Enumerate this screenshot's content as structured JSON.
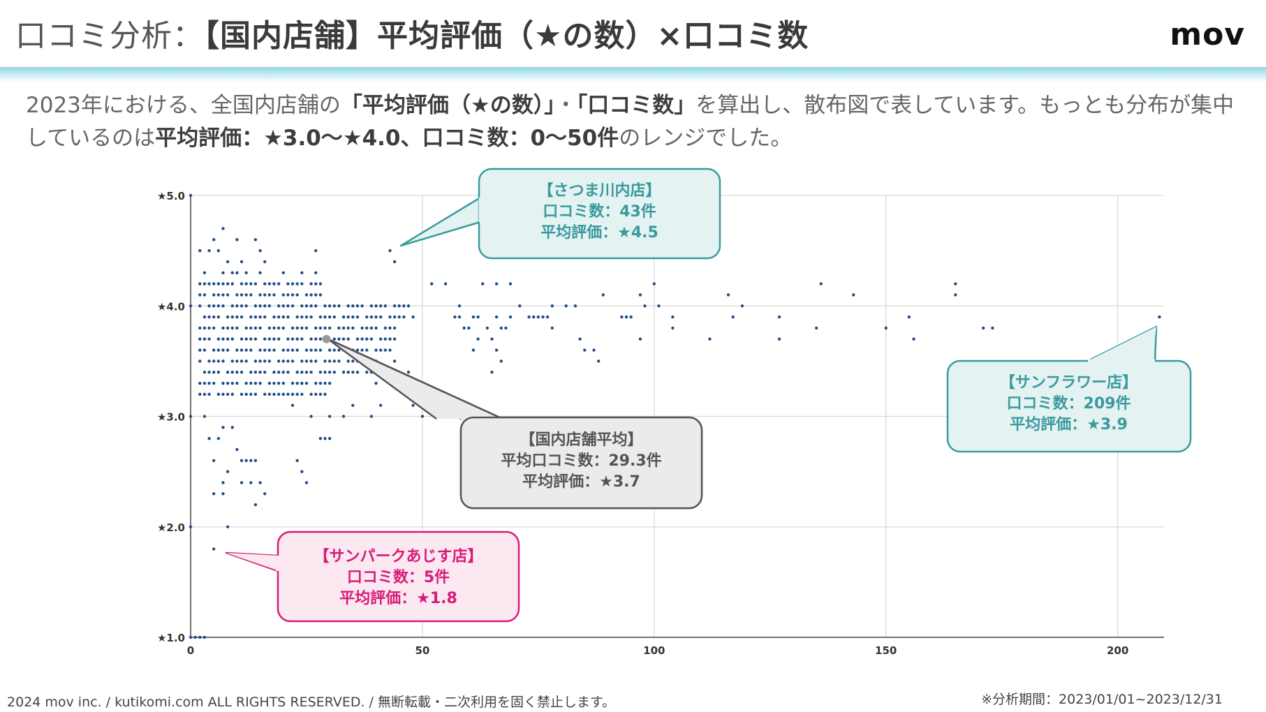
{
  "header": {
    "title_prefix": "口コミ分析：",
    "title_main": "【国内店舗】平均評価（★の数）×口コミ数",
    "logo": "mov"
  },
  "description": {
    "t1": "2023年における、全国内店舗の",
    "b1": "「平均評価（★の数）」",
    "t2": "・",
    "b2": "「口コミ数」",
    "t3": "を算出し、散布図で表しています。もっとも分布が集中しているのは",
    "b3": "平均評価：★3.0〜★4.0、口コミ数：0〜50件",
    "t4": "のレンジでした。"
  },
  "callouts": {
    "satsuma": {
      "name": "【さつま川内店】",
      "reviews": "口コミ数：43件",
      "rating": "平均評価：★4.5"
    },
    "average": {
      "name": "【国内店舗平均】",
      "reviews": "平均口コミ数：29.3件",
      "rating": "平均評価：★3.7"
    },
    "sunflower": {
      "name": "【サンフラワー店】",
      "reviews": "口コミ数：209件",
      "rating": "平均評価：★3.9"
    },
    "sunpark": {
      "name": "【サンパークあじす店】",
      "reviews": "口コミ数：5件",
      "rating": "平均評価：★1.8"
    }
  },
  "footer": {
    "left": "2024 mov inc. / kutikomi.com ALL RIGHTS RESERVED. / 無断転載・二次利用を固く禁止します。",
    "right": "※分析期間：2023/01/01~2023/12/31"
  },
  "colors": {
    "dot": "#1f4e89",
    "teal": "#3a9a9e",
    "teal_fill": "#e4f2f2",
    "gray_fill": "#ebebeb",
    "pink": "#d81b78",
    "pink_fill": "#fce8f1"
  },
  "chart_data": {
    "type": "scatter",
    "xlabel": "",
    "ylabel": "",
    "xlim": [
      0,
      210
    ],
    "ylim": [
      1.0,
      5.0
    ],
    "x_ticks": [
      0,
      50,
      100,
      150,
      200
    ],
    "x_tick_labels": [
      "0",
      "50",
      "100",
      "150",
      "200"
    ],
    "y_ticks": [
      1.0,
      2.0,
      3.0,
      4.0,
      5.0
    ],
    "y_tick_labels": [
      "★1.0",
      "★2.0",
      "★3.0",
      "★4.0",
      "★5.0"
    ],
    "grid": true,
    "highlight": {
      "name": "国内店舗平均",
      "x": 29.3,
      "y": 3.7
    },
    "points": [
      [
        0,
        5.0
      ],
      [
        0,
        4.0
      ],
      [
        0,
        3.0
      ],
      [
        0,
        2.0
      ],
      [
        0,
        1.0
      ],
      [
        1,
        1.0
      ],
      [
        2,
        1.0
      ],
      [
        3,
        1.0
      ],
      [
        2,
        4.5
      ],
      [
        3,
        4.3
      ],
      [
        4,
        4.5
      ],
      [
        5,
        4.6
      ],
      [
        5,
        4.2
      ],
      [
        6,
        4.5
      ],
      [
        7,
        4.7
      ],
      [
        8,
        4.4
      ],
      [
        10,
        4.6
      ],
      [
        11,
        4.4
      ],
      [
        14,
        4.6
      ],
      [
        15,
        4.5
      ],
      [
        16,
        4.4
      ],
      [
        27,
        4.5
      ],
      [
        44,
        4.4
      ],
      [
        43,
        4.5
      ],
      [
        7,
        4.3
      ],
      [
        9,
        4.3
      ],
      [
        10,
        4.3
      ],
      [
        12,
        4.3
      ],
      [
        15,
        4.3
      ],
      [
        20,
        4.3
      ],
      [
        24,
        4.3
      ],
      [
        27,
        4.3
      ],
      [
        20,
        3.2
      ],
      [
        22,
        3.1
      ],
      [
        24,
        3.3
      ],
      [
        26,
        3.0
      ],
      [
        30,
        3.0
      ],
      [
        33,
        3.0
      ],
      [
        35,
        3.1
      ],
      [
        40,
        3.3
      ],
      [
        41,
        3.1
      ],
      [
        50,
        3.0
      ],
      [
        48,
        3.1
      ],
      [
        44,
        3.5
      ],
      [
        47,
        3.4
      ],
      [
        3,
        3.0
      ],
      [
        4,
        2.8
      ],
      [
        5,
        2.6
      ],
      [
        6,
        2.8
      ],
      [
        7,
        2.4
      ],
      [
        7,
        2.9
      ],
      [
        8,
        2.5
      ],
      [
        9,
        2.9
      ],
      [
        10,
        2.7
      ],
      [
        11,
        2.6
      ],
      [
        12,
        2.6
      ],
      [
        13,
        2.6
      ],
      [
        14,
        2.6
      ],
      [
        11,
        2.4
      ],
      [
        13,
        2.4
      ],
      [
        15,
        2.4
      ],
      [
        16,
        2.3
      ],
      [
        14,
        2.2
      ],
      [
        5,
        2.3
      ],
      [
        7,
        2.3
      ],
      [
        23,
        2.6
      ],
      [
        24,
        2.5
      ],
      [
        25,
        2.4
      ],
      [
        28,
        2.8
      ],
      [
        29,
        2.8
      ],
      [
        30,
        2.8
      ],
      [
        39,
        3.0
      ],
      [
        8,
        2.0
      ],
      [
        5,
        1.8
      ],
      [
        52,
        4.2
      ],
      [
        55,
        4.2
      ],
      [
        63,
        4.2
      ],
      [
        66,
        4.2
      ],
      [
        69,
        4.2
      ],
      [
        71,
        4.0
      ],
      [
        73,
        3.9
      ],
      [
        74,
        3.9
      ],
      [
        75,
        3.9
      ],
      [
        76,
        3.9
      ],
      [
        77,
        3.9
      ],
      [
        78,
        3.8
      ],
      [
        78,
        4.0
      ],
      [
        81,
        4.0
      ],
      [
        83,
        4.0
      ],
      [
        84,
        3.7
      ],
      [
        85,
        3.6
      ],
      [
        87,
        3.6
      ],
      [
        88,
        3.5
      ],
      [
        89,
        4.1
      ],
      [
        93,
        3.9
      ],
      [
        94,
        3.9
      ],
      [
        95,
        3.9
      ],
      [
        97,
        3.7
      ],
      [
        97,
        4.1
      ],
      [
        98,
        4.0
      ],
      [
        100,
        4.2
      ],
      [
        101,
        4.0
      ],
      [
        104,
        3.8
      ],
      [
        104,
        3.9
      ],
      [
        112,
        3.7
      ],
      [
        116,
        4.1
      ],
      [
        117,
        3.9
      ],
      [
        119,
        4.0
      ],
      [
        127,
        3.9
      ],
      [
        127,
        3.7
      ],
      [
        135,
        3.8
      ],
      [
        136,
        4.2
      ],
      [
        143,
        4.1
      ],
      [
        150,
        3.8
      ],
      [
        155,
        3.9
      ],
      [
        156,
        3.7
      ],
      [
        165,
        4.2
      ],
      [
        165,
        4.1
      ],
      [
        171,
        3.8
      ],
      [
        173,
        3.8
      ],
      [
        209,
        3.9
      ],
      [
        57,
        3.9
      ],
      [
        58,
        3.9
      ],
      [
        60,
        3.8
      ],
      [
        61,
        3.9
      ],
      [
        62,
        3.9
      ],
      [
        64,
        3.8
      ],
      [
        65,
        3.7
      ],
      [
        66,
        3.9
      ],
      [
        67,
        3.8
      ],
      [
        68,
        3.8
      ],
      [
        69,
        3.9
      ],
      [
        66,
        3.6
      ],
      [
        58,
        4.0
      ],
      [
        59,
        3.8
      ],
      [
        61,
        3.6
      ],
      [
        62,
        3.7
      ],
      [
        65,
        3.4
      ],
      [
        67,
        3.5
      ]
    ],
    "dense_cluster": {
      "description": "cluster of points for 0-50 reviews and rating 3.0-4.0",
      "x_range": [
        2,
        50
      ],
      "y_values": [
        3.2,
        3.3,
        3.4,
        3.5,
        3.6,
        3.7,
        3.8,
        3.9,
        4.0,
        4.1,
        4.2
      ],
      "step_x": 1
    }
  }
}
